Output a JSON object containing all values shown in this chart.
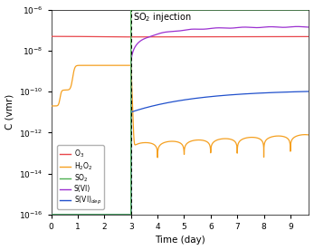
{
  "title": "SO$_2$ injection",
  "xlabel": "Time (day)",
  "ylabel": "C (vmr)",
  "xlim": [
    0,
    9.7
  ],
  "ylim_log": [
    -16,
    -6
  ],
  "injection_day": 3.0,
  "fig_bg": "#ffffff",
  "ax_bg": "#ffffff",
  "colors": {
    "O3": "#e8474c",
    "H2O2": "#f5a020",
    "SO2": "#4caf50",
    "SVI": "#9b30d0",
    "SVI_dep": "#2050cc"
  },
  "legend_labels": [
    "O$_3$",
    "H$_2$O$_2$",
    "SO$_2$",
    "S(VI)",
    "S(VI)$_{dep}$"
  ]
}
